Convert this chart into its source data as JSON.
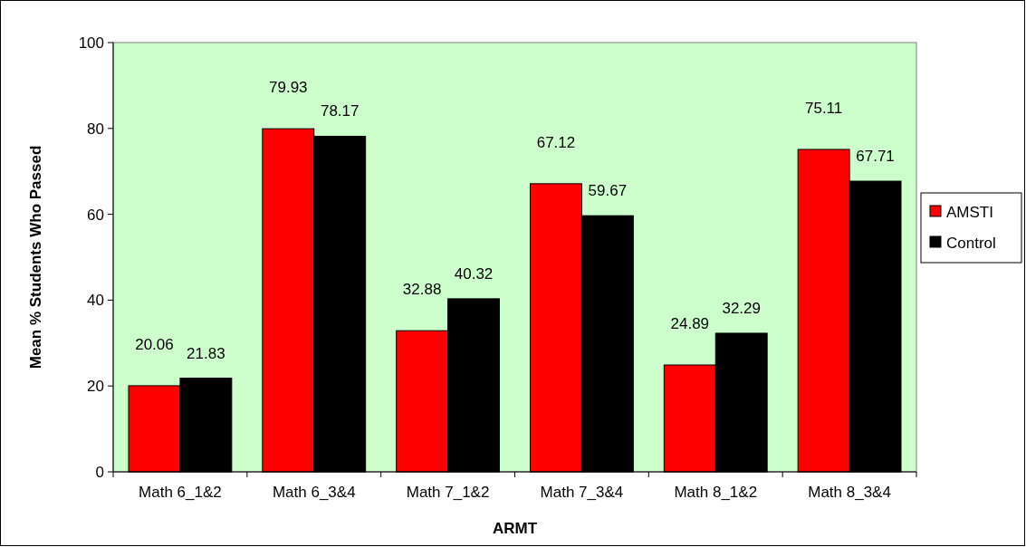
{
  "chart_data": {
    "type": "bar",
    "xlabel": "ARMT",
    "ylabel": "Mean % Students Who Passed",
    "categories": [
      "Math 6_1&2",
      "Math 6_3&4",
      "Math 7_1&2",
      "Math 7_3&4",
      "Math 8_1&2",
      "Math 8_3&4"
    ],
    "series": [
      {
        "name": "AMSTI",
        "color": "#ff0000",
        "values": [
          20.06,
          79.93,
          32.88,
          67.12,
          24.89,
          75.11
        ]
      },
      {
        "name": "Control",
        "color": "#000000",
        "values": [
          21.83,
          78.17,
          40.32,
          59.67,
          32.29,
          67.71
        ]
      }
    ],
    "ylim": [
      0,
      100
    ],
    "yticks": [
      0,
      20,
      40,
      60,
      80,
      100
    ],
    "grid": false,
    "legend": "right",
    "data_labels": true
  }
}
